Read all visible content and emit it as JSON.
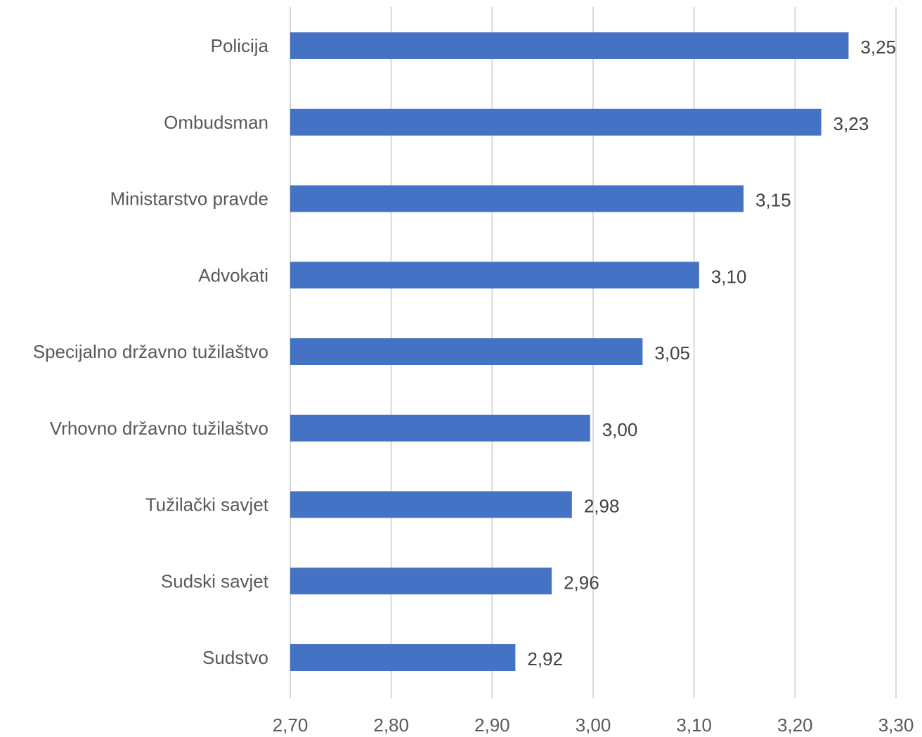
{
  "chart_data": {
    "type": "bar",
    "orientation": "horizontal",
    "title": "",
    "xlabel": "",
    "ylabel": "",
    "categories": [
      "Policija",
      "Ombudsman",
      "Ministarstvo pravde",
      "Advokati",
      "Specijalno državno tužilaštvo",
      "Vrhovno državno tužilaštvo",
      "Tužilački savjet",
      "Sudski savjet",
      "Sudstvo"
    ],
    "values": [
      3.253,
      3.226,
      3.149,
      3.105,
      3.049,
      2.997,
      2.979,
      2.959,
      2.923
    ],
    "value_labels": [
      "3,25",
      "3,23",
      "3,15",
      "3,10",
      "3,05",
      "3,00",
      "2,98",
      "2,96",
      "2,92"
    ],
    "xlim": [
      2.7,
      3.3
    ],
    "x_ticks": [
      2.7,
      2.8,
      2.9,
      3.0,
      3.1,
      3.2,
      3.3
    ],
    "x_tick_labels": [
      "2,70",
      "2,80",
      "2,90",
      "3,00",
      "3,10",
      "3,20",
      "3,30"
    ],
    "grid": "vertical",
    "legend": "none",
    "bar_color": "#4472c4",
    "grid_color": "#d9d9d9",
    "label_color": "#595959",
    "value_label_color": "#404040"
  }
}
